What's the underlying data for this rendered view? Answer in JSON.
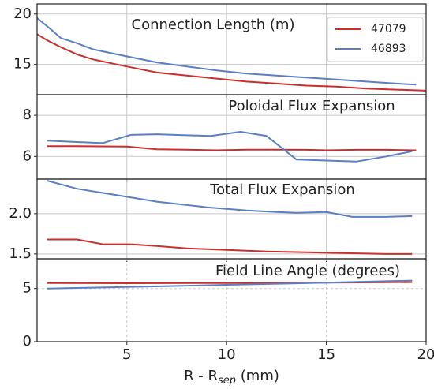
{
  "chart_data": [
    {
      "type": "line",
      "title": "Connection Length (m)",
      "xlim": [
        0.5,
        20
      ],
      "xticks": [
        5,
        10,
        15,
        20
      ],
      "ylim": [
        12,
        21
      ],
      "yticks": [
        15,
        20
      ],
      "grid": true,
      "legend": "upper right",
      "series": [
        {
          "name": "47079",
          "color": "#c9302c",
          "x": [
            0.5,
            1,
            1.7,
            2.5,
            3.3,
            4.5,
            5.5,
            6.5,
            8,
            9.5,
            11,
            12.5,
            14,
            15.5,
            17,
            18.5,
            20
          ],
          "values": [
            18.0,
            17.4,
            16.7,
            16.0,
            15.5,
            15.0,
            14.6,
            14.2,
            13.9,
            13.6,
            13.3,
            13.1,
            12.9,
            12.8,
            12.6,
            12.5,
            12.4
          ]
        },
        {
          "name": "46893",
          "color": "#5b7fc4",
          "x": [
            0.5,
            1,
            1.7,
            2.5,
            3.3,
            4.5,
            5.5,
            6.5,
            8,
            9.5,
            11,
            12.5,
            14,
            15.5,
            17,
            18.5,
            19.5
          ],
          "values": [
            19.6,
            18.8,
            17.6,
            17.1,
            16.5,
            16.0,
            15.6,
            15.2,
            14.8,
            14.4,
            14.1,
            13.9,
            13.7,
            13.5,
            13.3,
            13.1,
            13.0
          ]
        }
      ]
    },
    {
      "type": "line",
      "title": "Poloidal Flux Expansion",
      "xlim": [
        0.5,
        20
      ],
      "xticks": [
        5,
        10,
        15,
        20
      ],
      "ylim": [
        4.9,
        9.0
      ],
      "yticks": [
        6,
        8
      ],
      "grid": true,
      "series": [
        {
          "color": "#c9302c",
          "x": [
            1,
            2.5,
            5,
            6.5,
            8,
            9.5,
            11,
            12.5,
            14,
            15,
            16.5,
            18,
            19.5
          ],
          "values": [
            6.5,
            6.5,
            6.48,
            6.35,
            6.33,
            6.3,
            6.33,
            6.33,
            6.32,
            6.3,
            6.32,
            6.32,
            6.3
          ]
        },
        {
          "color": "#5b7fc4",
          "x": [
            1,
            2.5,
            3.8,
            5.2,
            6.5,
            8,
            9.2,
            10.7,
            12,
            13.5,
            15,
            16.5,
            18,
            19.3
          ],
          "values": [
            6.77,
            6.7,
            6.65,
            7.05,
            7.08,
            7.03,
            7.0,
            7.2,
            7.0,
            5.85,
            5.8,
            5.75,
            6.0,
            6.25
          ]
        }
      ]
    },
    {
      "type": "line",
      "title": "Total Flux Expansion",
      "xlim": [
        0.5,
        20
      ],
      "xticks": [
        5,
        10,
        15,
        20
      ],
      "ylim": [
        1.44,
        2.43
      ],
      "yticks": [
        {
          "value": 1.5,
          "label": "1.5"
        },
        {
          "value": 2.0,
          "label": "2.0"
        }
      ],
      "grid": true,
      "series": [
        {
          "color": "#c9302c",
          "x": [
            1,
            2.5,
            3.8,
            5.2,
            6.5,
            8,
            10,
            12,
            14,
            16,
            18,
            19.3
          ],
          "values": [
            1.68,
            1.68,
            1.62,
            1.62,
            1.6,
            1.57,
            1.55,
            1.53,
            1.52,
            1.51,
            1.5,
            1.5
          ]
        },
        {
          "color": "#5b7fc4",
          "x": [
            1,
            2.5,
            5,
            6.5,
            9,
            11,
            12.5,
            13.5,
            15,
            16.3,
            18,
            19.3
          ],
          "values": [
            2.41,
            2.31,
            2.21,
            2.15,
            2.08,
            2.04,
            2.02,
            2.01,
            2.02,
            1.96,
            1.96,
            1.97
          ]
        }
      ]
    },
    {
      "type": "line",
      "title": "Field Line Angle (degrees)",
      "xlim": [
        0.5,
        20
      ],
      "xticks": [
        5,
        10,
        15,
        20
      ],
      "ylim": [
        0,
        7.8
      ],
      "yticks": [
        0,
        5
      ],
      "grid": true,
      "xlabel": [
        "R - R",
        "sep",
        " (mm)"
      ],
      "series": [
        {
          "color": "#c9302c",
          "x": [
            1,
            5,
            10,
            15,
            19.3
          ],
          "values": [
            5.52,
            5.5,
            5.52,
            5.55,
            5.6
          ]
        },
        {
          "color": "#5b7fc4",
          "x": [
            1,
            5,
            10,
            15,
            19.3
          ],
          "values": [
            5.0,
            5.15,
            5.35,
            5.55,
            5.75
          ]
        }
      ]
    }
  ]
}
